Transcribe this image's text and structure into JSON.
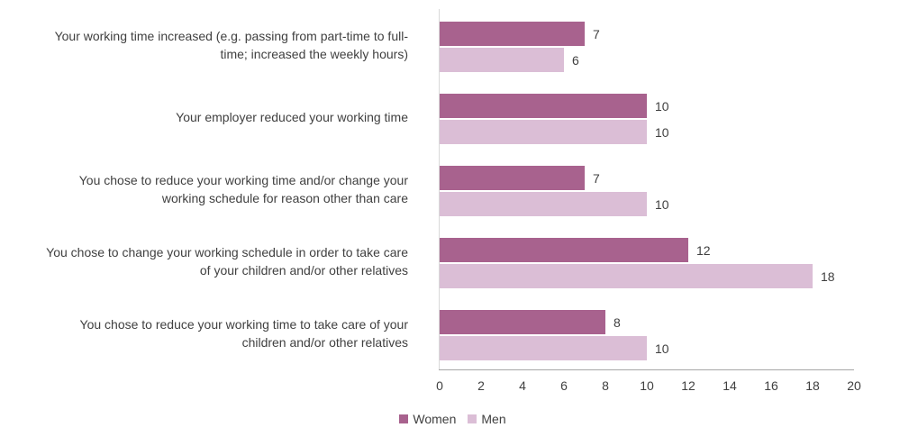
{
  "chart_data": {
    "type": "bar",
    "orientation": "horizontal",
    "title": "",
    "categories": [
      "Your working time increased (e.g. passing from part-time to full-\ntime; increased the weekly hours)",
      "Your employer reduced your working time",
      "You chose to reduce your working time and/or change your\nworking schedule for reason other than care",
      "You chose to change your working schedule in order to take care\nof your children and/or other relatives",
      "You chose to reduce your working time to take care of your\nchildren and/or other relatives"
    ],
    "series": [
      {
        "name": "Women",
        "color": "#a8628e",
        "values": [
          7,
          10,
          7,
          12,
          8
        ]
      },
      {
        "name": "Men",
        "color": "#dbbed6",
        "values": [
          6,
          10,
          10,
          18,
          10
        ]
      }
    ],
    "xlim": [
      0,
      20
    ],
    "xticks": [
      0,
      2,
      4,
      6,
      8,
      10,
      12,
      14,
      16,
      18,
      20
    ],
    "legend_position": "bottom",
    "value_labels_shown": true,
    "axis_line_color": "#a6a6a6",
    "y_axis_line_color": "#d9d9d9",
    "text_color": "#404040",
    "background_color": "#ffffff"
  }
}
